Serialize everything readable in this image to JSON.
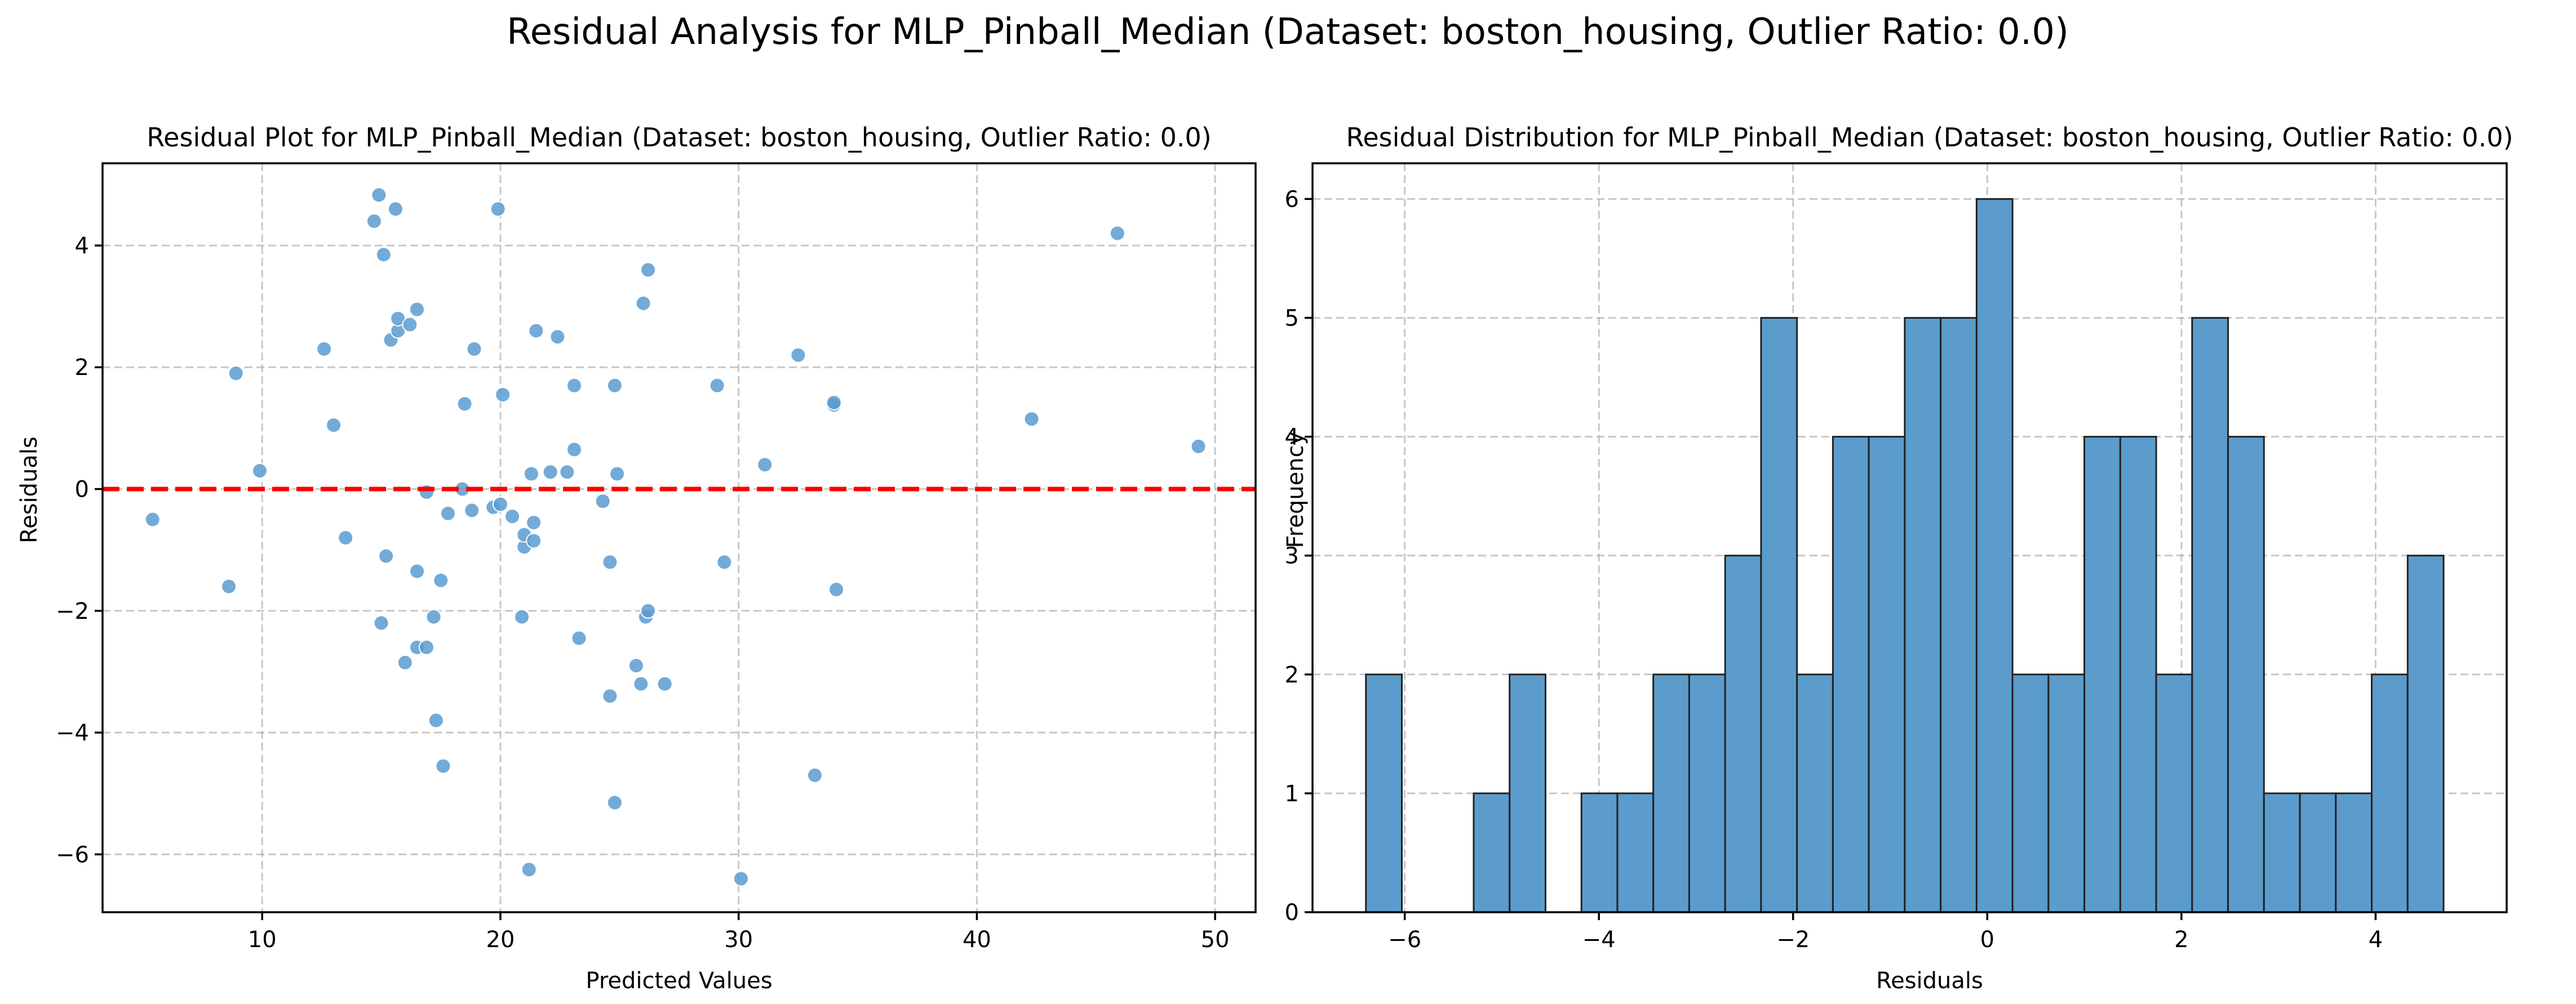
{
  "figure": {
    "suptitle": "Residual Analysis for MLP_Pinball_Median (Dataset: boston_housing, Outlier Ratio: 0.0)"
  },
  "colors": {
    "point": "#5b9bd0",
    "point_edge": "#ffffff",
    "bar": "#5b9ccc",
    "bar_edge": "#222222",
    "zero_line": "#ff0000",
    "grid": "#b0b0b0"
  },
  "chart_data": [
    {
      "type": "scatter",
      "title": "Residual Plot for MLP_Pinball_Median (Dataset: boston_housing, Outlier Ratio: 0.0)",
      "xlabel": "Predicted Values",
      "ylabel": "Residuals",
      "xlim": [
        3.3,
        51.7
      ],
      "ylim": [
        -6.95,
        5.35
      ],
      "xticks": [
        10,
        20,
        30,
        40,
        50
      ],
      "yticks": [
        -6,
        -4,
        -2,
        0,
        2,
        4
      ],
      "grid": true,
      "reference_line": {
        "y": 0,
        "style": "dashed",
        "color": "red"
      },
      "points": [
        [
          5.4,
          -0.5
        ],
        [
          8.6,
          -1.6
        ],
        [
          8.9,
          1.9
        ],
        [
          9.9,
          0.3
        ],
        [
          12.6,
          2.3
        ],
        [
          13.0,
          1.05
        ],
        [
          13.5,
          -0.8
        ],
        [
          14.7,
          4.4
        ],
        [
          14.9,
          4.83
        ],
        [
          15.0,
          -2.2
        ],
        [
          15.1,
          3.85
        ],
        [
          15.2,
          -1.1
        ],
        [
          15.4,
          2.45
        ],
        [
          15.6,
          4.6
        ],
        [
          15.7,
          2.6
        ],
        [
          15.7,
          2.8
        ],
        [
          16.0,
          -2.85
        ],
        [
          16.2,
          2.7
        ],
        [
          16.5,
          2.95
        ],
        [
          16.5,
          -2.6
        ],
        [
          16.5,
          -1.35
        ],
        [
          16.9,
          -2.6
        ],
        [
          16.9,
          -0.05
        ],
        [
          17.2,
          -2.1
        ],
        [
          17.3,
          -3.8
        ],
        [
          17.5,
          -1.5
        ],
        [
          17.6,
          -4.55
        ],
        [
          17.8,
          -0.4
        ],
        [
          18.4,
          0.0
        ],
        [
          18.5,
          1.4
        ],
        [
          18.8,
          -0.35
        ],
        [
          18.9,
          2.3
        ],
        [
          19.7,
          -0.3
        ],
        [
          19.9,
          4.6
        ],
        [
          20.0,
          -0.25
        ],
        [
          20.1,
          1.55
        ],
        [
          20.5,
          -0.45
        ],
        [
          20.9,
          -2.1
        ],
        [
          21.0,
          -0.95
        ],
        [
          21.0,
          -0.75
        ],
        [
          21.2,
          -6.25
        ],
        [
          21.3,
          0.25
        ],
        [
          21.4,
          -0.55
        ],
        [
          21.4,
          -0.85
        ],
        [
          21.5,
          2.6
        ],
        [
          22.1,
          0.28
        ],
        [
          22.4,
          2.5
        ],
        [
          22.8,
          0.28
        ],
        [
          23.1,
          1.7
        ],
        [
          23.1,
          0.65
        ],
        [
          23.3,
          -2.45
        ],
        [
          24.3,
          -0.2
        ],
        [
          24.6,
          -1.2
        ],
        [
          24.6,
          -3.4
        ],
        [
          24.8,
          -5.15
        ],
        [
          24.8,
          1.7
        ],
        [
          24.9,
          0.25
        ],
        [
          25.7,
          -2.9
        ],
        [
          25.9,
          -3.2
        ],
        [
          26.0,
          3.05
        ],
        [
          26.1,
          -2.1
        ],
        [
          26.2,
          -2.0
        ],
        [
          26.2,
          3.6
        ],
        [
          26.9,
          -3.2
        ],
        [
          29.1,
          1.7
        ],
        [
          29.4,
          -1.2
        ],
        [
          30.1,
          -6.4
        ],
        [
          31.1,
          0.4
        ],
        [
          32.5,
          2.2
        ],
        [
          33.2,
          -4.7
        ],
        [
          34.0,
          1.38
        ],
        [
          34.0,
          1.42
        ],
        [
          34.1,
          -1.65
        ],
        [
          42.3,
          1.15
        ],
        [
          45.9,
          4.2
        ],
        [
          49.3,
          0.7
        ]
      ]
    },
    {
      "type": "bar",
      "title": "Residual Distribution for MLP_Pinball_Median (Dataset: boston_housing, Outlier Ratio: 0.0)",
      "xlabel": "Residuals",
      "ylabel": "Frequency",
      "xlim": [
        -6.95,
        5.35
      ],
      "ylim": [
        0,
        6.3
      ],
      "xticks": [
        -6,
        -4,
        -2,
        0,
        2,
        4
      ],
      "yticks": [
        0,
        1,
        2,
        3,
        4,
        5,
        6
      ],
      "grid": true,
      "bin_start": -6.4,
      "bin_width": 0.37,
      "values": [
        2,
        0,
        0,
        1,
        2,
        0,
        1,
        1,
        2,
        2,
        3,
        5,
        2,
        4,
        4,
        5,
        5,
        6,
        2,
        2,
        4,
        4,
        2,
        5,
        4,
        1,
        1,
        1,
        2,
        3
      ]
    }
  ]
}
